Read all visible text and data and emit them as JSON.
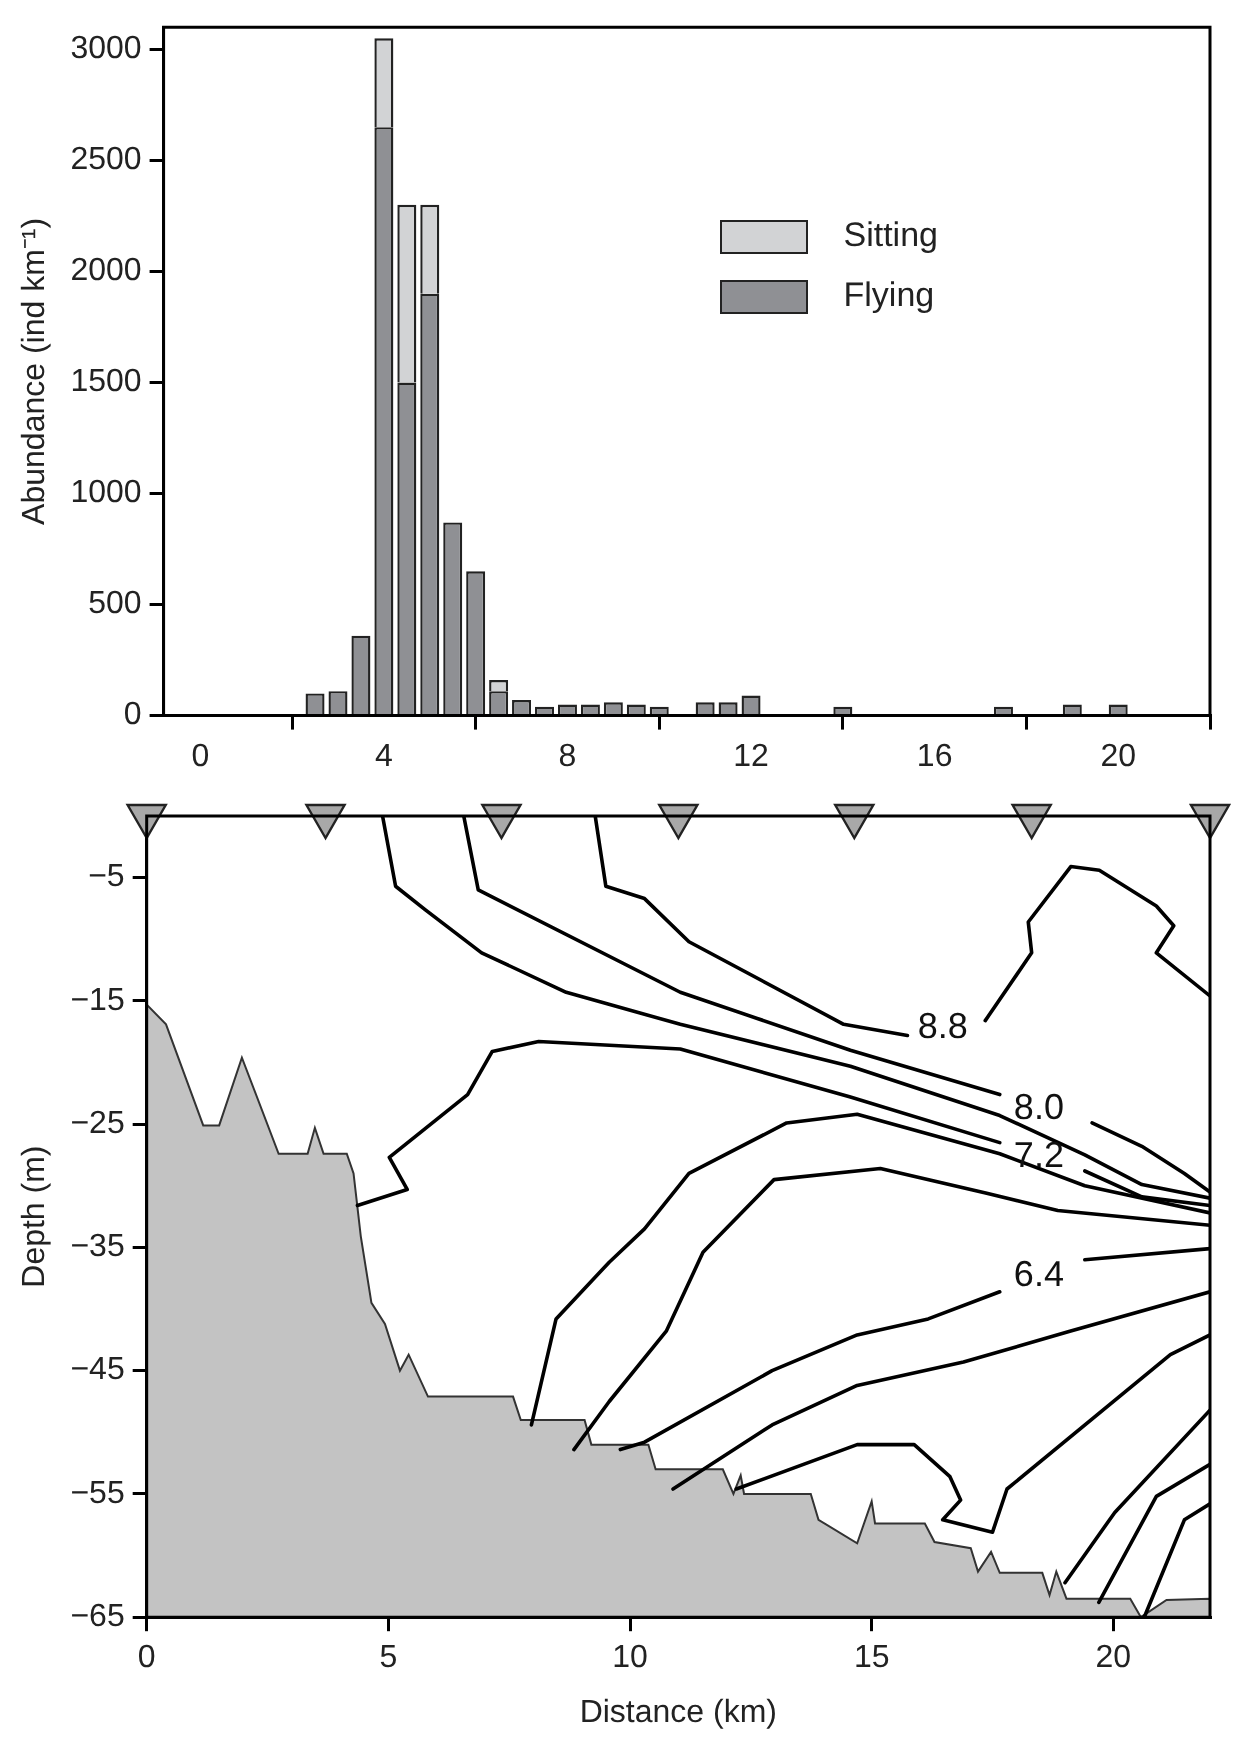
{
  "chart_data": [
    {
      "type": "bar",
      "ylabel": "Abundance (ind km⁻¹)",
      "stacked": true,
      "legend": "top right",
      "grid": false,
      "x": [
        2.5,
        3,
        3.5,
        4,
        4.5,
        5,
        5.5,
        6,
        6.5,
        7,
        7.5,
        8,
        8.5,
        9,
        9.5,
        10,
        11,
        11.5,
        12,
        14,
        17.5,
        19,
        20
      ],
      "series": [
        {
          "name": "Flying",
          "color": "#8f9094",
          "values": [
            100,
            110,
            360,
            2650,
            1500,
            1900,
            870,
            650,
            110,
            70,
            40,
            50,
            50,
            60,
            50,
            40,
            60,
            60,
            90,
            40,
            40,
            50,
            50
          ]
        },
        {
          "name": "Sitting",
          "color": "#d2d3d5",
          "values": [
            null,
            null,
            null,
            400,
            800,
            400,
            null,
            null,
            50,
            null,
            null,
            null,
            null,
            null,
            null,
            null,
            null,
            null,
            null,
            null,
            null,
            null,
            null
          ]
        }
      ],
      "xlim": [
        -0.8,
        22
      ],
      "xticks": [
        0,
        4,
        8,
        12,
        16,
        20
      ],
      "ylim": [
        0,
        3100
      ],
      "yticks": [
        0,
        500,
        1000,
        1500,
        2000,
        2500,
        3000
      ]
    },
    {
      "type": "line",
      "xlabel": "Distance (km)",
      "ylabel": "Depth (m)",
      "grid": false,
      "marker": "none",
      "series": [
        {
          "type": "area",
          "color": "#c3c3c3",
          "x": [
            0,
            0,
            0.4,
            1.17,
            1.5,
            1.97,
            2.73,
            3.33,
            3.48,
            3.66,
            4.14,
            4.28,
            4.43,
            4.65,
            4.93,
            5.24,
            5.42,
            5.82,
            7.58,
            7.74,
            9.06,
            9.2,
            10.38,
            10.53,
            11.92,
            12.14,
            12.29,
            12.36,
            13.74,
            13.9,
            14.7,
            15.0,
            15.07,
            16.1,
            16.3,
            17.05,
            17.2,
            17.47,
            17.65,
            18.53,
            18.68,
            18.82,
            19.03,
            20.35,
            20.57,
            21.1,
            22,
            22
          ],
          "values": [
            -65,
            -15.3,
            -16.9,
            -25.1,
            -25.1,
            -19.6,
            -27.4,
            -27.4,
            -25.3,
            -27.4,
            -27.4,
            -29,
            -34.1,
            -39.5,
            -41.2,
            -45,
            -43.7,
            -47.1,
            -47.1,
            -49,
            -49,
            -51,
            -51,
            -53,
            -53,
            -55,
            -53.5,
            -55,
            -55,
            -57.1,
            -59,
            -55.6,
            -57.4,
            -57.4,
            -58.9,
            -59.4,
            -61.3,
            -59.7,
            -61.4,
            -61.4,
            -63.2,
            -61.3,
            -63.5,
            -63.5,
            -65,
            -63.6,
            -63.5,
            -65
          ]
        },
        {
          "name": "8.8",
          "color": "#000000",
          "x": [
            9.28,
            9.5,
            10.3,
            11.22,
            14.42,
            15.74,
            16.47,
            17.35,
            18.31,
            18.24,
            19.12,
            19.71,
            20.89,
            21.25,
            20.89,
            22
          ],
          "values": [
            0,
            -5.7,
            -6.7,
            -10.2,
            -16.9,
            -17.8,
            null,
            -16.6,
            -11.1,
            -8.6,
            -4.1,
            -4.4,
            -7.3,
            -8.9,
            -11.1,
            -14.6
          ]
        },
        {
          "name": "8.0",
          "color": "#000000",
          "x": [
            6.56,
            6.86,
            11.04,
            14.56,
            17.65,
            18.46,
            19.56,
            20.59,
            21.47,
            22
          ],
          "values": [
            0,
            -6,
            -14.3,
            -19,
            -22.6,
            null,
            -24.9,
            -26.8,
            -29,
            -30.5
          ]
        },
        {
          "color": "#000000",
          "x": [
            4.88,
            5.15,
            5.76,
            6.93,
            8.68,
            11.04,
            14.56,
            17.65,
            19.41,
            20.59,
            22
          ],
          "values": [
            0,
            -5.7,
            -7.6,
            -11.1,
            -14.3,
            -16.9,
            -20.3,
            -24.3,
            -27.5,
            -29.9,
            -31
          ]
        },
        {
          "name": "7.2",
          "color": "#000000",
          "x": [
            4.36,
            5.39,
            5.02,
            6.64,
            7.15,
            8.11,
            11.04,
            14.56,
            17.65,
            18.46,
            19.41,
            20.59,
            22
          ],
          "values": [
            -31.6,
            -30.3,
            -27.7,
            -22.6,
            -19.1,
            -18.3,
            -18.9,
            -22.8,
            -26.5,
            null,
            -28.8,
            -30.9,
            -31.6
          ]
        },
        {
          "color": "#000000",
          "x": [
            7.96,
            8.47,
            9.57,
            10.3,
            11.22,
            13.24,
            14.7,
            17.65,
            19.41,
            22
          ],
          "values": [
            -49.4,
            -40.8,
            -36.2,
            -33.5,
            -29,
            -24.9,
            -24.2,
            -27.4,
            -30,
            -32.2
          ]
        },
        {
          "color": "#000000",
          "x": [
            8.84,
            9.57,
            10.75,
            11.51,
            12.98,
            15.18,
            17.38,
            18.85,
            22
          ],
          "values": [
            -51.4,
            -47.5,
            -41.8,
            -35.4,
            -29.5,
            -28.6,
            -30.6,
            -32,
            -33.2
          ]
        },
        {
          "name": "6.4",
          "color": "#000000",
          "x": [
            9.8,
            10.3,
            12.94,
            14.7,
            16.17,
            17.65,
            18.46,
            19.41,
            22
          ],
          "values": [
            -51.4,
            -50.8,
            -45,
            -42.1,
            -40.8,
            -38.6,
            null,
            -36,
            -35.1
          ]
        },
        {
          "color": "#000000",
          "x": [
            10.89,
            12.94,
            14.7,
            16.9,
            19.1,
            22
          ],
          "values": [
            -54.6,
            -49.4,
            -46.2,
            -44.3,
            -41.8,
            -38.6
          ]
        },
        {
          "color": "#000000",
          "x": [
            12.2,
            14.7,
            15.88,
            16.62,
            16.84,
            16.47,
            17.5,
            17.8,
            21.18,
            22
          ],
          "values": [
            -54.6,
            -51,
            -51,
            -53.6,
            -55.5,
            -57.1,
            -58.1,
            -54.6,
            -43.7,
            -42.1
          ]
        },
        {
          "color": "#000000",
          "x": [
            19.0,
            20.03,
            22
          ],
          "values": [
            -62.2,
            -56.5,
            -48.2
          ]
        },
        {
          "color": "#000000",
          "x": [
            19.7,
            20.89,
            22
          ],
          "values": [
            -63.8,
            -55.2,
            -52.6
          ]
        },
        {
          "color": "#000000",
          "x": [
            20.65,
            21.47,
            22
          ],
          "values": [
            -64.9,
            -57.1,
            -55.8
          ]
        },
        {
          "type": "scatter",
          "marker": "triangle",
          "color": "#a8a8a8",
          "x": [
            0,
            3.7,
            7.34,
            11,
            14.64,
            18.31,
            22
          ],
          "values": [
            0,
            0,
            0,
            0,
            0,
            0,
            0
          ]
        }
      ],
      "xlim": [
        0,
        22
      ],
      "xticks": [
        0,
        5,
        10,
        15,
        20
      ],
      "ylim": [
        -65,
        0
      ],
      "yticks": [
        {
          "value": -5,
          "label": "−5"
        },
        {
          "value": -15,
          "label": "−15"
        },
        {
          "value": -25,
          "label": "−25"
        },
        {
          "value": -35,
          "label": "−35"
        },
        {
          "value": -45,
          "label": "−45"
        },
        {
          "value": -55,
          "label": "−55"
        },
        {
          "value": -65,
          "label": "−65"
        }
      ]
    }
  ]
}
